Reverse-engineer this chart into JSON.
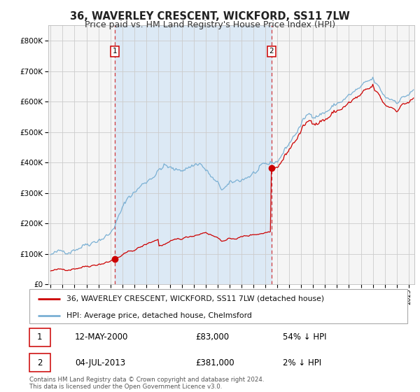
{
  "title": "36, WAVERLEY CRESCENT, WICKFORD, SS11 7LW",
  "subtitle": "Price paid vs. HM Land Registry's House Price Index (HPI)",
  "legend_line1": "36, WAVERLEY CRESCENT, WICKFORD, SS11 7LW (detached house)",
  "legend_line2": "HPI: Average price, detached house, Chelmsford",
  "annotation1_date": "12-MAY-2000",
  "annotation1_price": "£83,000",
  "annotation1_hpi": "54% ↓ HPI",
  "annotation2_date": "04-JUL-2013",
  "annotation2_price": "£381,000",
  "annotation2_hpi": "2% ↓ HPI",
  "footer": "Contains HM Land Registry data © Crown copyright and database right 2024.\nThis data is licensed under the Open Government Licence v3.0.",
  "red_color": "#cc0000",
  "blue_color": "#7ab0d4",
  "bg_shade_color": "#dce9f5",
  "chart_bg": "#f5f5f5",
  "grid_color": "#cccccc",
  "marker1_year": 2000.37,
  "marker1_value": 83000,
  "marker2_year": 2013.5,
  "marker2_value": 381000,
  "ylim_max": 850000,
  "xlim_start": 1994.8,
  "xlim_end": 2025.5,
  "title_fontsize": 10.5,
  "subtitle_fontsize": 9
}
